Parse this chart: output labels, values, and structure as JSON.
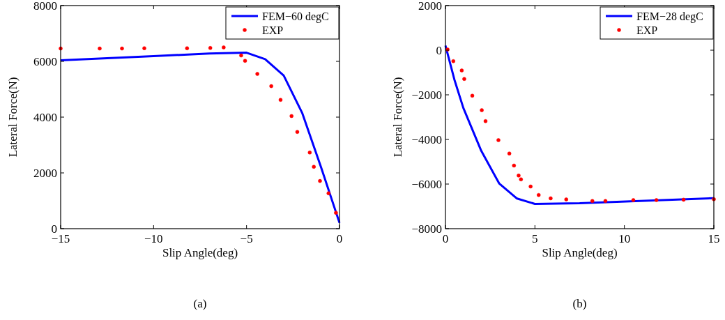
{
  "chart_data": [
    {
      "type": "line",
      "xlabel": "Slip Angle(deg)",
      "ylabel": "Lateral Force(N)",
      "annotations": [
        "(a)"
      ],
      "xlim": [
        -15,
        0
      ],
      "xticks": [
        -15,
        -10,
        -5,
        0
      ],
      "ylim": [
        0,
        8000
      ],
      "yticks": [
        0,
        2000,
        4000,
        6000,
        8000
      ],
      "grid": false,
      "legend": "top right",
      "series": [
        {
          "name": "FEM−60 degC",
          "color": "#0000ff",
          "x": [
            -15,
            -10,
            -7,
            -5,
            -4,
            -3,
            -2,
            -1,
            0
          ],
          "values": [
            6040,
            6190,
            6280,
            6310,
            6080,
            5490,
            4140,
            2220,
            210
          ]
        },
        {
          "name": "EXP",
          "type": "scatter",
          "marker": "circle",
          "color": "#ff0000",
          "x": [
            -15,
            -12.9,
            -11.7,
            -10.5,
            -8.2,
            -6.95,
            -6.23,
            -5.29,
            -5.08,
            -4.42,
            -3.67,
            -3.17,
            -2.58,
            -2.27,
            -1.6,
            -1.38,
            -1.05,
            -0.59,
            -0.19
          ],
          "values": [
            6460,
            6460,
            6460,
            6470,
            6470,
            6480,
            6500,
            6210,
            6020,
            5550,
            5110,
            4620,
            4040,
            3470,
            2730,
            2220,
            1710,
            1270,
            570
          ]
        }
      ]
    },
    {
      "type": "line",
      "xlabel": "Slip Angle(deg)",
      "ylabel": "Lateral Force(N)",
      "annotations": [
        "(b)"
      ],
      "xlim": [
        0,
        15
      ],
      "xticks": [
        0,
        5,
        10,
        15
      ],
      "ylim": [
        -8000,
        2000
      ],
      "yticks": [
        -8000,
        -6000,
        -4000,
        -2000,
        0,
        2000
      ],
      "grid": false,
      "legend": "top right",
      "series": [
        {
          "name": "FEM−28 degC",
          "color": "#0000ff",
          "x": [
            0,
            0.5,
            1,
            2,
            3,
            4,
            5,
            7.5,
            15
          ],
          "values": [
            210,
            -1320,
            -2590,
            -4510,
            -5970,
            -6650,
            -6890,
            -6860,
            -6630
          ]
        },
        {
          "name": "EXP",
          "type": "scatter",
          "marker": "circle",
          "color": "#ff0000",
          "x": [
            0.12,
            0.44,
            0.91,
            1.05,
            1.5,
            2.03,
            2.24,
            2.96,
            3.57,
            3.83,
            4.09,
            4.22,
            4.76,
            5.21,
            5.88,
            6.75,
            8.21,
            8.94,
            10.5,
            11.79,
            13.31,
            15
          ],
          "values": [
            30,
            -490,
            -910,
            -1290,
            -2040,
            -2690,
            -3180,
            -4030,
            -4630,
            -5170,
            -5620,
            -5790,
            -6110,
            -6490,
            -6640,
            -6690,
            -6760,
            -6760,
            -6720,
            -6720,
            -6700,
            -6680
          ]
        }
      ]
    }
  ]
}
